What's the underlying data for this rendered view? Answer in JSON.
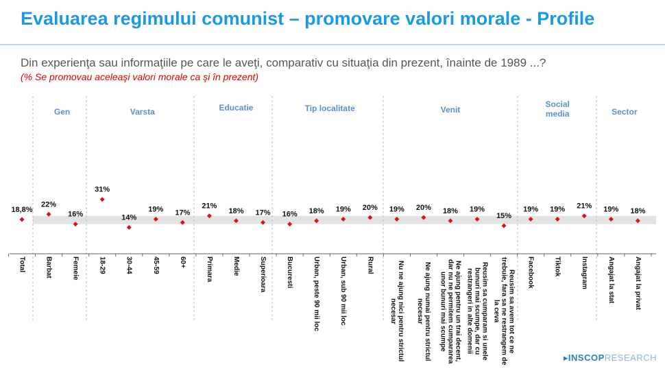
{
  "title": "Evaluarea regimului comunist – promovare valori morale - Profile",
  "question": "Din experienţa sau informaţiile pe care le aveţi, comparativ cu situaţia din prezent, înainte de 1989 ...?",
  "note": "(% Se promovau aceleaşi valori morale ca şi în prezent)",
  "logo": {
    "brand": "INSCOP",
    "suffix": "RESEARCH"
  },
  "colors": {
    "title": "#1a9ae0",
    "marker": "#e0101a",
    "group": "#5b8fd0",
    "band": "#e3e3e3"
  },
  "chart_data": {
    "type": "scatter",
    "title": "",
    "groups": [
      {
        "name": "",
        "start": 0,
        "end": 0
      },
      {
        "name": "Gen",
        "start": 1,
        "end": 2
      },
      {
        "name": "Varsta",
        "start": 3,
        "end": 6
      },
      {
        "name": "Educatie",
        "start": 7,
        "end": 9
      },
      {
        "name": "Tip localitate",
        "start": 10,
        "end": 13
      },
      {
        "name": "Venit",
        "start": 14,
        "end": 18
      },
      {
        "name": "Social media",
        "start": 19,
        "end": 21
      },
      {
        "name": "Sector",
        "start": 22,
        "end": 23
      }
    ],
    "categories": [
      "Total",
      "Barbat",
      "Femeie",
      "18-29",
      "30-44",
      "45-59",
      "60+",
      "Primara",
      "Medie",
      "Superioara",
      "Bucuresti",
      "Urban, peste 90 mii loc",
      "Urban, sub 90 mii loc",
      "Rural",
      "Nu ne ajung nici pentru strictul necesar",
      "Ne ajung numai pentru strictul necesar",
      "Ne ajung pentru un trai decent, dar nu ne permitem cumpararea unor bunuri mai scumpe",
      "Reusim sa cumparam si unele bunuri mai scumpe, dar cu restrangeri in alte domenii",
      "Reusim sa avem tot ce ne trebuie, fara sa ne restrangem de la ceva",
      "Facebook",
      "Tiktok",
      "Instagram",
      "Angajat la stat",
      "Angajat la privat"
    ],
    "values": [
      18.8,
      22,
      16,
      31,
      14,
      19,
      17,
      21,
      18,
      17,
      16,
      18,
      19,
      20,
      19,
      20,
      18,
      19,
      15,
      19,
      19,
      21,
      19,
      18
    ],
    "labels": [
      "18,8%",
      "22%",
      "16%",
      "31%",
      "14%",
      "19%",
      "17%",
      "21%",
      "18%",
      "17%",
      "16%",
      "18%",
      "19%",
      "20%",
      "19%",
      "20%",
      "18%",
      "19%",
      "15%",
      "19%",
      "19%",
      "21%",
      "19%",
      "18%"
    ],
    "band": [
      16,
      21
    ],
    "grid": false
  }
}
